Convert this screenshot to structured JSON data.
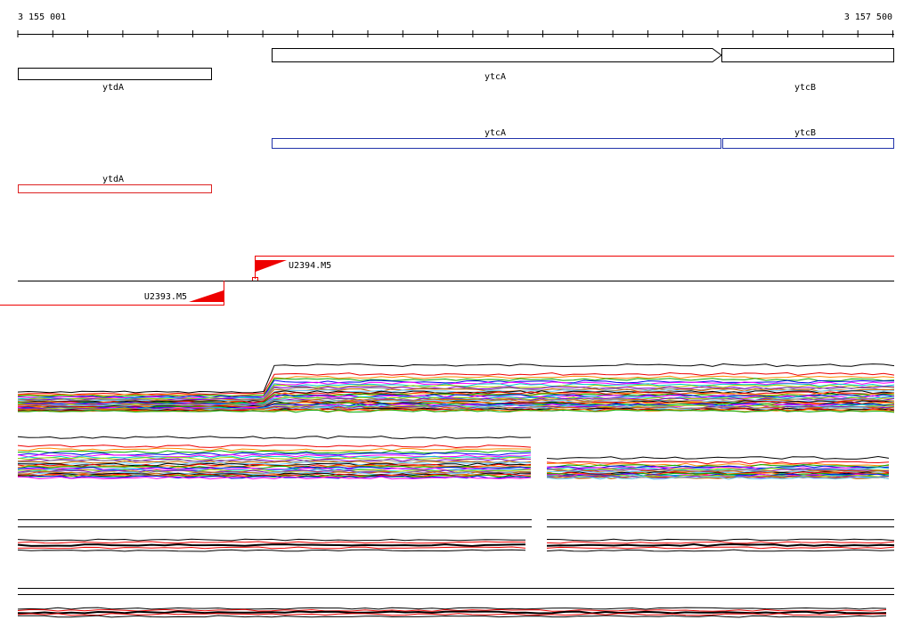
{
  "ruler": {
    "start": "3 155 001",
    "end": "3 157 500"
  },
  "tracks": {
    "genes": {
      "ytdA": "ytdA",
      "ytcA": "ytcA",
      "ytcB": "ytcB"
    },
    "cds": {
      "ytcA": "ytcA",
      "ytcB": "ytcB"
    },
    "rna": {
      "ytdA": "ytdA"
    },
    "probes": {
      "U2394": "U2394.M5",
      "U2393": "U2393.M5"
    }
  }
}
